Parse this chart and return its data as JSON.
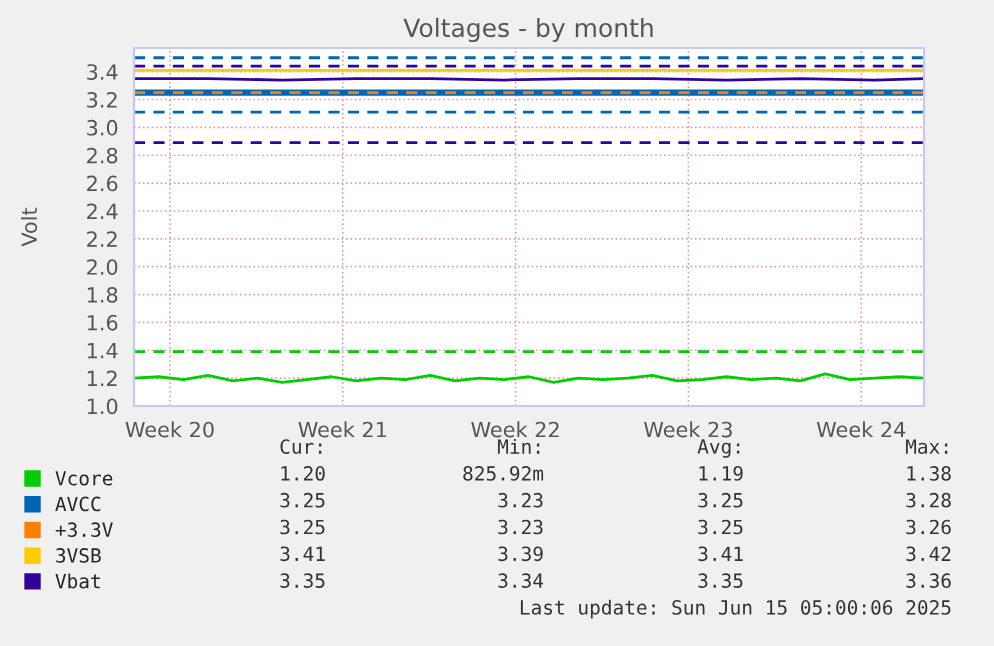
{
  "chart_data": {
    "type": "line",
    "title": "Voltages - by month",
    "ylabel": "Volt",
    "x": [
      "2025-05-14T05:00",
      "2025-05-15T05:00",
      "2025-05-16T05:00",
      "2025-05-17T05:00",
      "2025-05-18T05:00",
      "2025-05-19T05:00",
      "2025-05-20T05:00",
      "2025-05-21T05:00",
      "2025-05-22T05:00",
      "2025-05-23T05:00",
      "2025-05-24T05:00",
      "2025-05-25T05:00",
      "2025-05-26T05:00",
      "2025-05-27T05:00",
      "2025-05-28T05:00",
      "2025-05-29T05:00",
      "2025-05-30T05:00",
      "2025-05-31T05:00",
      "2025-06-01T05:00",
      "2025-06-02T05:00",
      "2025-06-03T05:00",
      "2025-06-04T05:00",
      "2025-06-05T05:00",
      "2025-06-06T05:00",
      "2025-06-07T05:00",
      "2025-06-08T05:00",
      "2025-06-09T05:00",
      "2025-06-10T05:00",
      "2025-06-11T05:00",
      "2025-06-12T05:00",
      "2025-06-13T05:00",
      "2025-06-14T05:00",
      "2025-06-15T05:00"
    ],
    "series": [
      {
        "name": "Vcore",
        "color": "#00cc00",
        "values": [
          1.2,
          1.21,
          1.19,
          1.22,
          1.18,
          1.2,
          1.17,
          1.19,
          1.21,
          1.18,
          1.2,
          1.19,
          1.22,
          1.18,
          1.2,
          1.19,
          1.21,
          1.17,
          1.2,
          1.19,
          1.2,
          1.22,
          1.18,
          1.19,
          1.21,
          1.19,
          1.2,
          1.18,
          1.23,
          1.19,
          1.2,
          1.21,
          1.2
        ]
      },
      {
        "name": "AVCC",
        "color": "#0066b3",
        "x": [
          "2025-05-14T05:00",
          "2025-06-15T05:00"
        ],
        "values": [
          3.25,
          3.25
        ]
      },
      {
        "name": "+3.3V",
        "color": "#ff8000",
        "x": [
          "2025-05-14T05:00",
          "2025-06-15T05:00"
        ],
        "values": [
          3.25,
          3.25
        ],
        "line_style": "dashed"
      },
      {
        "name": "3VSB",
        "color": "#ffcc00",
        "x": [
          "2025-05-14T05:00",
          "2025-06-15T05:00"
        ],
        "values": [
          3.41,
          3.41
        ]
      },
      {
        "name": "Vbat",
        "color": "#330099",
        "x": [
          "2025-05-14T05:00",
          "2025-05-17T05:00",
          "2025-05-20T05:00",
          "2025-05-23T05:00",
          "2025-05-26T05:00",
          "2025-05-29T05:00",
          "2025-06-01T05:00",
          "2025-06-04T05:00",
          "2025-06-07T05:00",
          "2025-06-10T05:00",
          "2025-06-13T05:00",
          "2025-06-15T05:00"
        ],
        "values": [
          3.35,
          3.35,
          3.34,
          3.35,
          3.35,
          3.34,
          3.35,
          3.35,
          3.34,
          3.35,
          3.34,
          3.35
        ]
      }
    ],
    "ref_lines": [
      {
        "axis": "y",
        "value": 3.5,
        "color": "#0066b3",
        "line_style": "dashed"
      },
      {
        "axis": "y",
        "value": 3.44,
        "color": "#330099",
        "line_style": "dashed"
      },
      {
        "axis": "y",
        "value": 3.11,
        "color": "#0066b3",
        "line_style": "dashed"
      },
      {
        "axis": "y",
        "value": 2.89,
        "color": "#330099",
        "line_style": "dashed"
      },
      {
        "axis": "y",
        "value": 1.39,
        "color": "#00cc00",
        "line_style": "dashed"
      }
    ],
    "xlim": [
      "2025-05-14T05:00",
      "2025-06-15T05:00"
    ],
    "xticks": [
      {
        "value": "2025-05-15T16:00",
        "label": "Week 20"
      },
      {
        "value": "2025-05-22T16:00",
        "label": "Week 21"
      },
      {
        "value": "2025-05-29T16:00",
        "label": "Week 22"
      },
      {
        "value": "2025-06-05T16:00",
        "label": "Week 23"
      },
      {
        "value": "2025-06-12T16:00",
        "label": "Week 24"
      }
    ],
    "ylim": [
      1.0,
      3.57
    ],
    "yticks": [
      {
        "value": 1.0,
        "label": "1.0"
      },
      1.2,
      1.4,
      1.6,
      1.8,
      {
        "value": 2.0,
        "label": "2.0"
      },
      2.2,
      2.4,
      2.6,
      2.8,
      {
        "value": 3.0,
        "label": "3.0"
      },
      3.2,
      3.4
    ],
    "grid": true,
    "legend": "bottom",
    "annotations": [
      "Cur:",
      "Min:",
      "Avg:",
      "Max:",
      "1.20",
      "825.92m",
      "1.19",
      "1.38",
      "3.25",
      "3.23",
      "3.25",
      "3.28",
      "3.25",
      "3.23",
      "3.25",
      "3.26",
      "3.41",
      "3.39",
      "3.41",
      "3.42",
      "3.35",
      "3.34",
      "3.35",
      "3.36",
      "Last update: Sun Jun 15 05:00:06 2025"
    ]
  }
}
